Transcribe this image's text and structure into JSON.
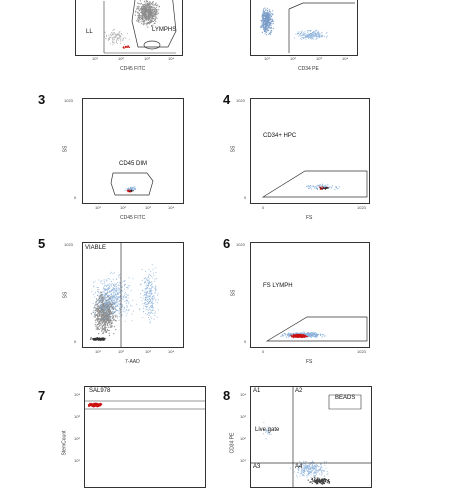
{
  "panels": [
    {
      "number": "",
      "xlabel": "CD45 FITC",
      "gates": [
        "LL",
        "LYMPHS"
      ],
      "xticks": [
        "10¹",
        "10²",
        "10³",
        "10⁴"
      ]
    },
    {
      "number": "",
      "xlabel": "CD34 PE",
      "gates": [],
      "xticks": [
        "10¹",
        "10²",
        "10³",
        "10⁴"
      ]
    },
    {
      "number": "3",
      "xlabel": "CD45 FITC",
      "ylabel": "SS",
      "gates": [
        "CD45 DIM"
      ],
      "yticks": [
        "1023",
        "0"
      ],
      "xticks": [
        "10¹",
        "10²",
        "10³",
        "10⁴"
      ]
    },
    {
      "number": "4",
      "xlabel": "FS",
      "ylabel": "SS",
      "gates": [
        "CD34+ HPC"
      ],
      "yticks": [
        "1023",
        "0"
      ],
      "xticks": [
        "0",
        "1023"
      ]
    },
    {
      "number": "5",
      "xlabel": "7-AAD",
      "ylabel": "SS",
      "gates": [
        "VIABLE"
      ],
      "yticks": [
        "1023",
        "0"
      ],
      "xticks": [
        "10¹",
        "10²",
        "10³",
        "10⁴"
      ]
    },
    {
      "number": "6",
      "xlabel": "FS",
      "ylabel": "SS",
      "gates": [
        "FS LYMPH"
      ],
      "yticks": [
        "1023",
        "0"
      ],
      "xticks": [
        "0",
        "1023"
      ]
    },
    {
      "number": "7",
      "xlabel": "",
      "ylabel": "StemCount",
      "gates": [
        "SAL978"
      ],
      "yticks": [
        "10⁴",
        "10³",
        "10²",
        "10¹"
      ]
    },
    {
      "number": "8",
      "xlabel": "",
      "ylabel": "CD34 PE",
      "gates": [
        "A1",
        "A2",
        "BEADS",
        "Live gate",
        "A3",
        "A4"
      ],
      "yticks": [
        "10⁴",
        "10³",
        "10²",
        "10¹"
      ]
    }
  ],
  "colors": {
    "events_gray": "#8c8c8c",
    "events_blue": "#8fb4dc",
    "events_red": "#cc1111",
    "gate_line": "#333333"
  }
}
